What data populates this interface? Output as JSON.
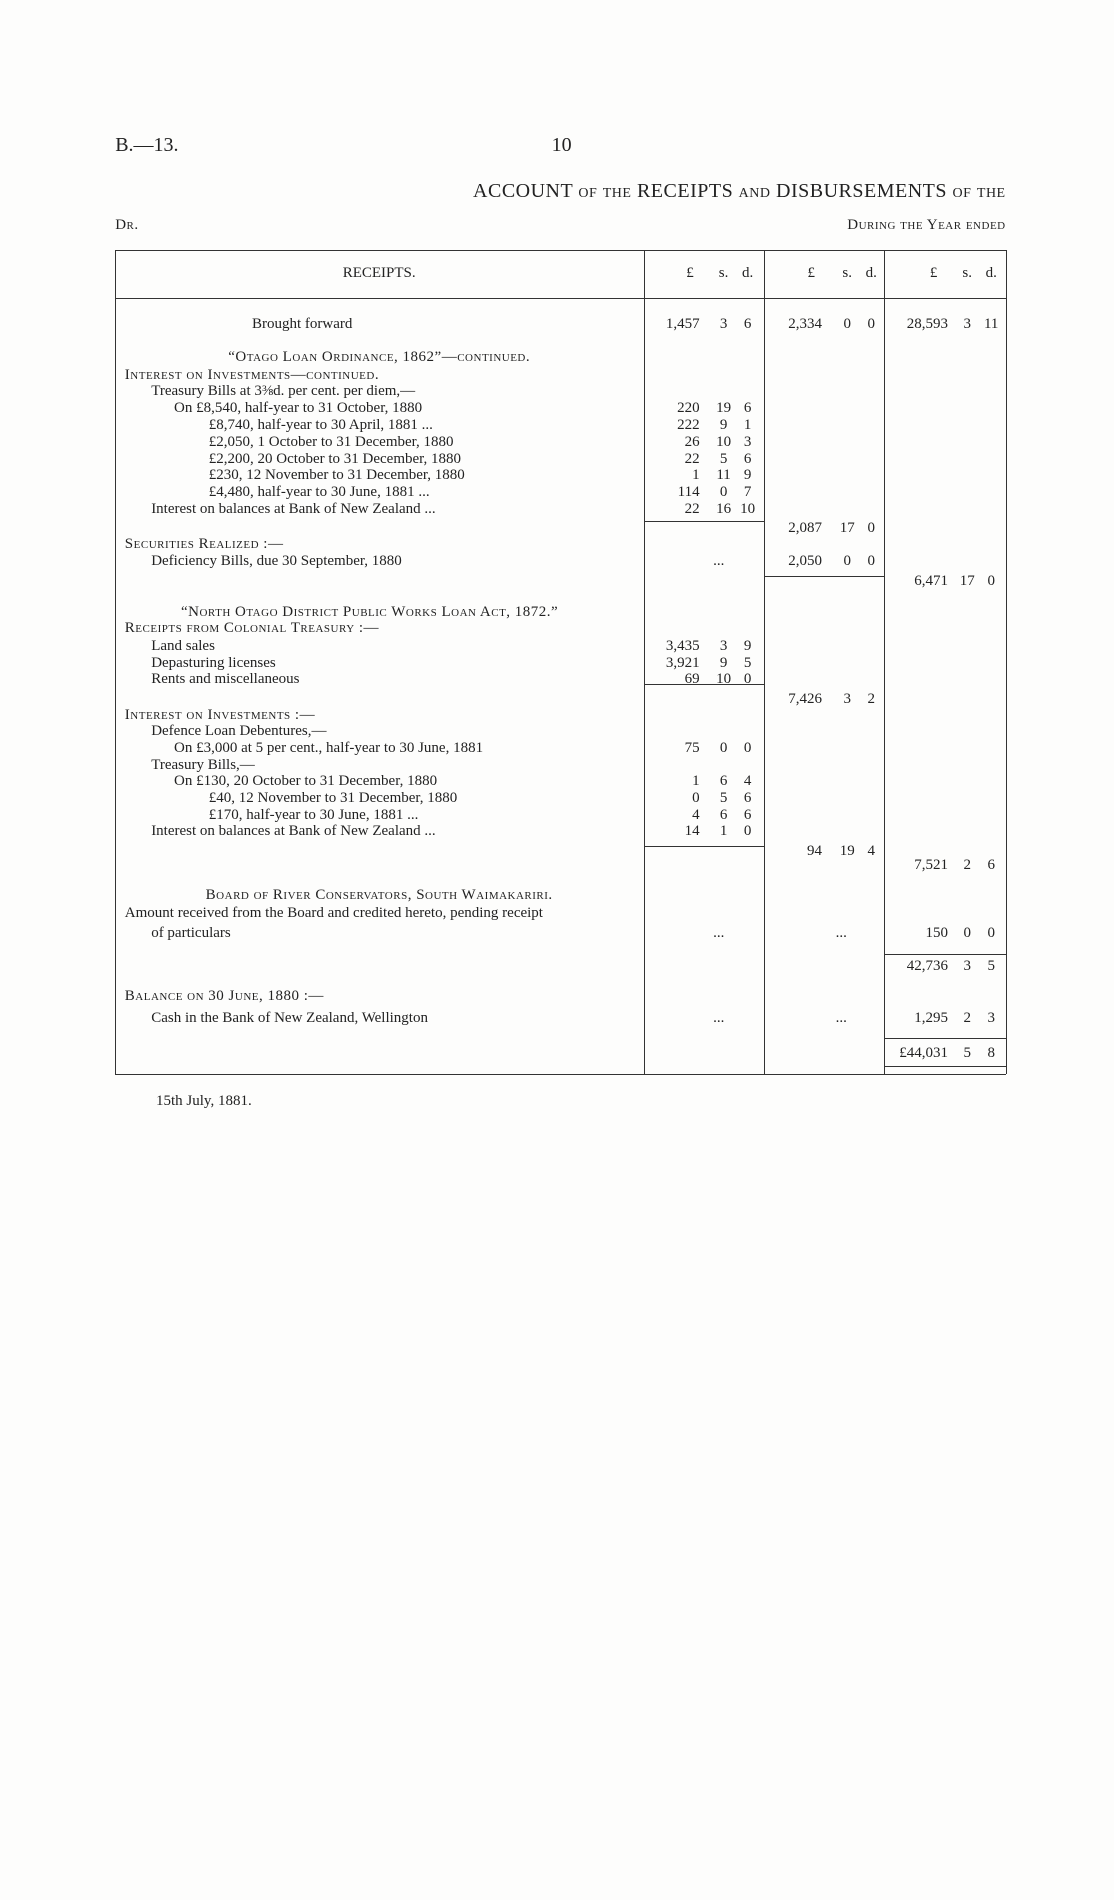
{
  "header": {
    "code": "B.—13.",
    "page": "10",
    "title": "ACCOUNT of the RECEIPTS and DISBURSEMENTS of the",
    "side": "Dr.",
    "period": "During the Year ended"
  },
  "table": {
    "columns": [
      "RECEIPTS.",
      "£",
      "s.",
      "d.",
      "£",
      "s.",
      "d.",
      "£",
      "s.",
      "d."
    ],
    "rows": [
      {
        "label": "Brought forward",
        "c1": [
          "1,457",
          "3",
          "6"
        ],
        "c2": [
          "2,334",
          "0",
          "0"
        ],
        "c3": [
          "28,593",
          "3",
          "11"
        ]
      },
      {
        "label": "“Otago Loan Ordinance, 1862”—continued."
      },
      {
        "label": "Interest on Investments—continued."
      },
      {
        "label": "Treasury Bills at 3⅜d. per cent. per diem,—"
      },
      {
        "label": "On £8,540, half-year to 31 October, 1880",
        "c1": [
          "220",
          "19",
          "6"
        ]
      },
      {
        "label": "£8,740, half-year to 30 April, 1881 ...",
        "c1": [
          "222",
          "9",
          "1"
        ]
      },
      {
        "label": "£2,050, 1 October to 31 December, 1880",
        "c1": [
          "26",
          "10",
          "3"
        ]
      },
      {
        "label": "£2,200, 20 October to 31 December, 1880",
        "c1": [
          "22",
          "5",
          "6"
        ]
      },
      {
        "label": "£230, 12 November to 31 December, 1880",
        "c1": [
          "1",
          "11",
          "9"
        ]
      },
      {
        "label": "£4,480, half-year to 30 June, 1881 ...",
        "c1": [
          "114",
          "0",
          "7"
        ]
      },
      {
        "label": "Interest on balances at Bank of New Zealand ...",
        "c1": [
          "22",
          "16",
          "10"
        ]
      },
      {
        "c2": [
          "2,087",
          "17",
          "0"
        ]
      },
      {
        "label": "Securities Realized :—"
      },
      {
        "label": "Deficiency Bills, due 30 September, 1880",
        "c1": [
          "..."
        ],
        "c2": [
          "2,050",
          "0",
          "0"
        ]
      },
      {
        "c3": [
          "6,471",
          "17",
          "0"
        ]
      },
      {
        "label": "“North Otago District Public Works Loan Act, 1872.”"
      },
      {
        "label": "Receipts from Colonial Treasury :—"
      },
      {
        "label": "Land sales",
        "c1": [
          "3,435",
          "3",
          "9"
        ]
      },
      {
        "label": "Depasturing licenses",
        "c1": [
          "3,921",
          "9",
          "5"
        ]
      },
      {
        "label": "Rents and miscellaneous",
        "c1": [
          "69",
          "10",
          "0"
        ]
      },
      {
        "c2": [
          "7,426",
          "3",
          "2"
        ]
      },
      {
        "label": "Interest on Investments :—"
      },
      {
        "label": "Defence Loan Debentures,—"
      },
      {
        "label": "On £3,000 at 5 per cent., half-year to 30 June, 1881",
        "c1": [
          "75",
          "0",
          "0"
        ]
      },
      {
        "label": "Treasury Bills,—"
      },
      {
        "label": "On £130, 20 October to 31 December, 1880",
        "c1": [
          "1",
          "6",
          "4"
        ]
      },
      {
        "label": "£40, 12 November to 31 December, 1880",
        "c1": [
          "0",
          "5",
          "6"
        ]
      },
      {
        "label": "£170, half-year to 30 June, 1881 ...",
        "c1": [
          "4",
          "6",
          "6"
        ]
      },
      {
        "label": "Interest on balances at Bank of New Zealand ...",
        "c1": [
          "14",
          "1",
          "0"
        ]
      },
      {
        "c2": [
          "94",
          "19",
          "4"
        ]
      },
      {
        "c3": [
          "7,521",
          "2",
          "6"
        ]
      },
      {
        "label": "Board of River Conservators, South Waimakariri."
      },
      {
        "label": "Amount received from the Board and credited hereto, pending receipt"
      },
      {
        "label": "of particulars",
        "c1": [
          "..."
        ],
        "c2": [
          "..."
        ],
        "c3": [
          "150",
          "0",
          "0"
        ]
      },
      {
        "c3": [
          "42,736",
          "3",
          "5"
        ]
      },
      {
        "label": "Balance on 30 June, 1880 :—"
      },
      {
        "label": "Cash in the Bank of New Zealand, Wellington",
        "c1": [
          "..."
        ],
        "c2": [
          "..."
        ],
        "c3": [
          "1,295",
          "2",
          "3"
        ]
      },
      {
        "c3": [
          "£44,031",
          "5",
          "8"
        ]
      }
    ]
  },
  "footer": {
    "date": "15th July, 1881."
  }
}
